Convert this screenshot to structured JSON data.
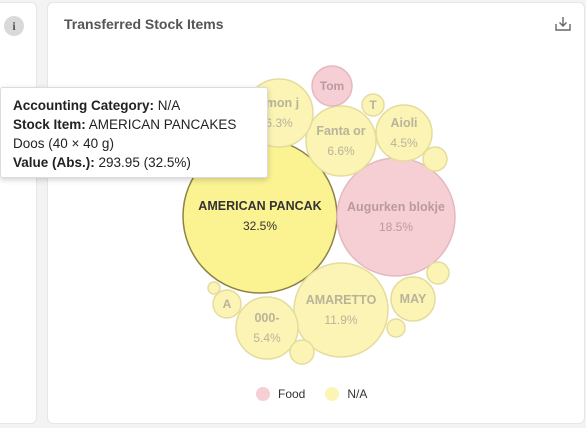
{
  "card": {
    "title": "Transferred Stock Items"
  },
  "info_icon": "info-icon",
  "download_icon": "download-icon",
  "tooltip": {
    "category_label": "Accounting Category:",
    "category_value": "N/A",
    "item_label": "Stock Item:",
    "item_value": "AMERICAN PANCAKES",
    "item_detail": "Doos (40 × 40 g)",
    "value_label": "Value (Abs.):",
    "value_value": "293.95 (32.5%)"
  },
  "colors": {
    "Food": "#f6cfd5",
    "N/A": "#fbf4b4",
    "Food_stroke": "#e3b8be",
    "NA_stroke": "#e4dc9c",
    "highlight_stroke": "#8c8246",
    "NA_highlight": "#fbf291"
  },
  "chart_data": {
    "type": "bubble",
    "title": "Transferred Stock Items",
    "legend": [
      "Food",
      "N/A"
    ],
    "legend_position": "bottom",
    "bubbles": [
      {
        "label": "AMERICAN PANCAK",
        "value": "32.5%",
        "group": "N/A",
        "share": 32.5,
        "highlighted": true
      },
      {
        "label": "Augurken blokje",
        "value": "18.5%",
        "group": "Food",
        "share": 18.5
      },
      {
        "label": "AMARETTO",
        "value": "11.9%",
        "group": "N/A",
        "share": 11.9
      },
      {
        "label": "Fanta or",
        "value": "6.6%",
        "group": "N/A",
        "share": 6.6
      },
      {
        "label": "emon j",
        "value": "6.3%",
        "group": "N/A",
        "share": 6.3
      },
      {
        "label": "000-",
        "value": "5.4%",
        "group": "N/A",
        "share": 5.4
      },
      {
        "label": "Aioli",
        "value": "4.5%",
        "group": "N/A",
        "share": 4.5
      },
      {
        "label": "MAY",
        "value": "",
        "group": "N/A",
        "share": 2.5
      },
      {
        "label": "Tom",
        "value": "",
        "group": "Food",
        "share": 2.1
      },
      {
        "label": "A",
        "value": "",
        "group": "N/A",
        "share": 0.9
      },
      {
        "label": "T",
        "value": "",
        "group": "N/A",
        "share": 0.6
      },
      {
        "label": "",
        "value": "",
        "group": "N/A",
        "share": 0.6
      },
      {
        "label": "",
        "value": "",
        "group": "N/A",
        "share": 0.5
      },
      {
        "label": "",
        "value": "",
        "group": "N/A",
        "share": 0.5
      },
      {
        "label": "",
        "value": "",
        "group": "N/A",
        "share": 0.4
      },
      {
        "label": "",
        "value": "",
        "group": "N/A",
        "share": 0.2
      }
    ]
  }
}
